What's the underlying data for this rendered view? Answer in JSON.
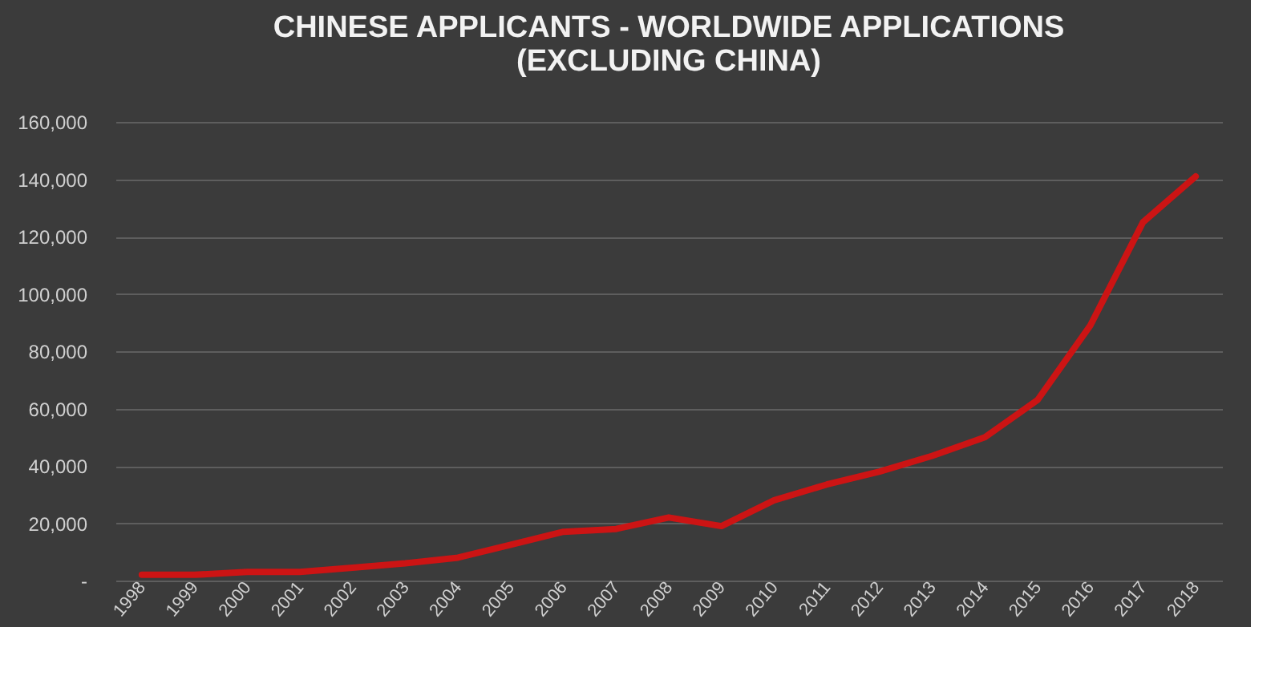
{
  "chart_data": {
    "type": "line",
    "title": [
      "CHINESE APPLICANTS - WORLDWIDE APPLICATIONS",
      "(EXCLUDING CHINA)"
    ],
    "categories": [
      "1998",
      "1999",
      "2000",
      "2001",
      "2002",
      "2003",
      "2004",
      "2005",
      "2006",
      "2007",
      "2008",
      "2009",
      "2010",
      "2011",
      "2012",
      "2013",
      "2014",
      "2015",
      "2016",
      "2017",
      "2018"
    ],
    "series": [
      {
        "color": "#cc1414",
        "values": [
          2000,
          2000,
          3000,
          3000,
          4500,
          6000,
          8000,
          12500,
          17000,
          18000,
          22000,
          19000,
          28000,
          33500,
          38000,
          43500,
          50000,
          63000,
          89000,
          125000,
          141000
        ]
      }
    ],
    "ylim": [
      0,
      160000
    ],
    "yticks": [
      {
        "value": 0,
        "label": "-"
      },
      {
        "value": 20000,
        "label": "20,000"
      },
      {
        "value": 40000,
        "label": "40,000"
      },
      {
        "value": 60000,
        "label": "60,000"
      },
      {
        "value": 80000,
        "label": "80,000"
      },
      {
        "value": 100000,
        "label": "100,000"
      },
      {
        "value": 120000,
        "label": "120,000"
      },
      {
        "value": 140000,
        "label": "140,000"
      },
      {
        "value": 160000,
        "label": "160,000"
      }
    ],
    "grid": "y",
    "marker": "none",
    "line_style": "solid"
  }
}
